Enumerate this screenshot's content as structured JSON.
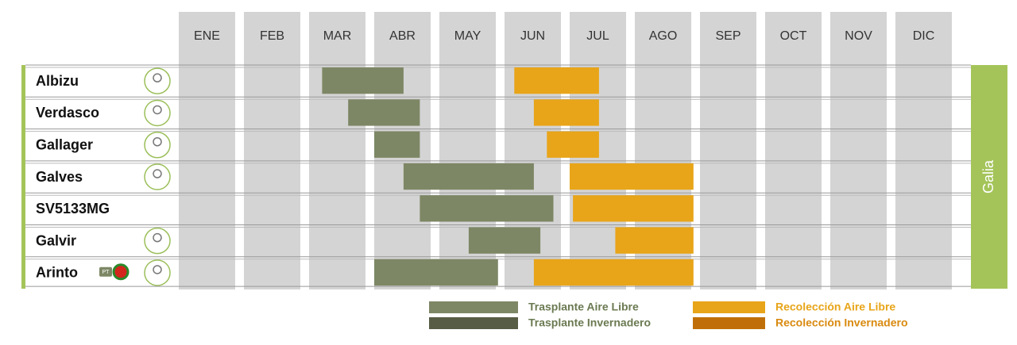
{
  "chart_data": {
    "type": "gantt",
    "categories": [
      "ENE",
      "FEB",
      "MAR",
      "ABR",
      "MAY",
      "JUN",
      "JUL",
      "AGO",
      "SEP",
      "OCT",
      "NOV",
      "DIC"
    ],
    "xlim": [
      0,
      12
    ],
    "rows": [
      "Albizu",
      "Verdasco",
      "Gallager",
      "Galves",
      "SV5133MG",
      "Galvir",
      "Arinto"
    ],
    "logo": [
      true,
      true,
      true,
      true,
      false,
      true,
      true
    ],
    "badges": [
      null,
      null,
      null,
      null,
      null,
      null,
      "PT"
    ],
    "group_label": "Galia",
    "series": [
      {
        "name": "Trasplante Aire Libre",
        "color": "#7d8765",
        "start": [
          2.2,
          2.6,
          3.0,
          3.45,
          3.7,
          4.45,
          3.0
        ],
        "end": [
          3.45,
          3.7,
          3.7,
          5.45,
          5.75,
          5.55,
          4.9
        ]
      },
      {
        "name": "Trasplante Invernadero",
        "color": "#575c45",
        "start": [
          null,
          null,
          null,
          null,
          null,
          null,
          null
        ],
        "end": [
          null,
          null,
          null,
          null,
          null,
          null,
          null
        ]
      },
      {
        "name": "Recolección Aire Libre",
        "color": "#e8a519",
        "start": [
          5.15,
          5.45,
          5.65,
          6.0,
          6.05,
          6.7,
          5.45
        ],
        "end": [
          6.45,
          6.45,
          6.45,
          7.9,
          7.9,
          7.9,
          7.9
        ]
      },
      {
        "name": "Recolección Invernadero",
        "color": "#c06f08",
        "start": [
          null,
          null,
          null,
          null,
          null,
          null,
          null
        ],
        "end": [
          null,
          null,
          null,
          null,
          null,
          null,
          null
        ]
      }
    ]
  }
}
